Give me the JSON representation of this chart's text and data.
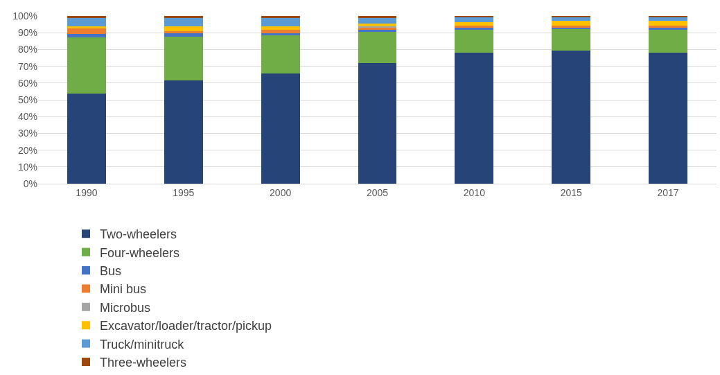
{
  "chart_data": {
    "type": "bar",
    "stacked": true,
    "categories": [
      "1990",
      "1995",
      "2000",
      "2005",
      "2010",
      "2015",
      "2017"
    ],
    "series": [
      {
        "name": "Two-wheelers",
        "color": "#264478",
        "values": [
          53.7,
          61.7,
          65.6,
          71.9,
          78.1,
          79.3,
          78.0
        ]
      },
      {
        "name": "Four-wheelers",
        "color": "#70ad47",
        "values": [
          33.4,
          25.9,
          22.8,
          18.4,
          13.5,
          13.1,
          13.6
        ]
      },
      {
        "name": "Bus",
        "color": "#4472c4",
        "values": [
          2.0,
          2.0,
          1.1,
          1.3,
          1.3,
          0.6,
          1.3
        ]
      },
      {
        "name": "Mini bus",
        "color": "#ed7d31",
        "values": [
          3.3,
          1.5,
          2.2,
          1.4,
          1.3,
          1.3,
          1.3
        ]
      },
      {
        "name": "Microbus",
        "color": "#a5a5a5",
        "values": [
          null,
          null,
          null,
          0.9,
          null,
          null,
          null
        ]
      },
      {
        "name": "Excavator/loader/tractor/pickup",
        "color": "#ffc000",
        "values": [
          1.6,
          2.7,
          2.1,
          1.4,
          2.2,
          2.9,
          2.9
        ]
      },
      {
        "name": "Truck/minitruck",
        "color": "#5b9bd5",
        "values": [
          4.6,
          4.8,
          4.8,
          3.3,
          3.0,
          2.2,
          2.2
        ]
      },
      {
        "name": "Three-wheelers",
        "color": "#9e480e",
        "values": [
          1.4,
          1.4,
          1.4,
          1.4,
          0.6,
          0.6,
          0.7
        ]
      }
    ],
    "ylim": [
      0,
      100
    ],
    "yticks": [
      {
        "value": 0,
        "label": "0%"
      },
      {
        "value": 10,
        "label": "10%"
      },
      {
        "value": 20,
        "label": "20%"
      },
      {
        "value": 30,
        "label": "30%"
      },
      {
        "value": 40,
        "label": "40%"
      },
      {
        "value": 50,
        "label": "50%"
      },
      {
        "value": 60,
        "label": "60%"
      },
      {
        "value": 70,
        "label": "70%"
      },
      {
        "value": 80,
        "label": "80%"
      },
      {
        "value": 90,
        "label": "90%"
      },
      {
        "value": 100,
        "label": "100%"
      }
    ],
    "grid": "y",
    "legend": "bottom"
  }
}
